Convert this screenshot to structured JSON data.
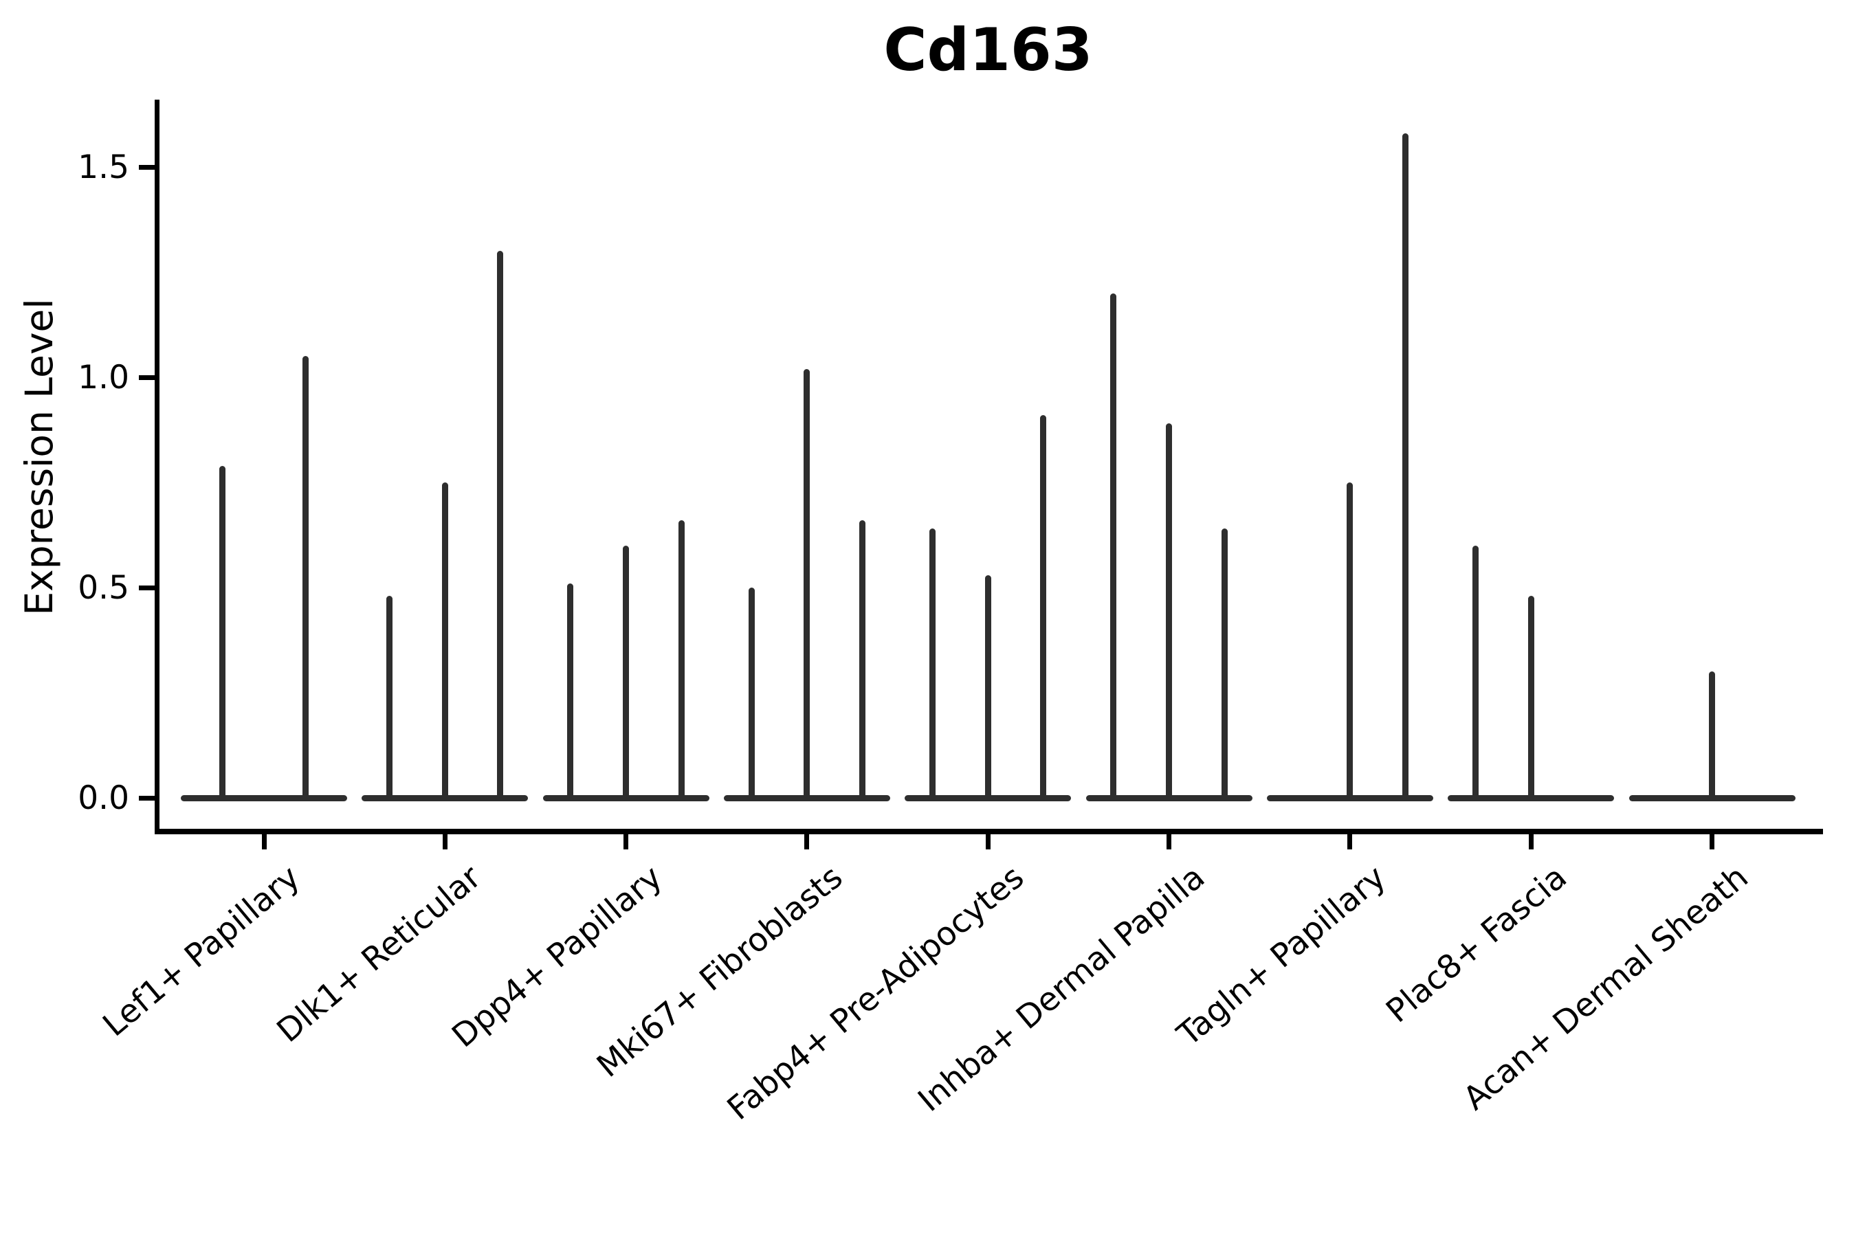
{
  "chart_data": {
    "type": "violin",
    "title": "Cd163",
    "ylabel": "Expression Level",
    "xlabel": "",
    "yticks": [
      0.0,
      0.5,
      1.0,
      1.5
    ],
    "ylim": [
      -0.08,
      1.66
    ],
    "grid": false,
    "legend": "none",
    "categories": [
      "Lef1+ Papillary",
      "Dlk1+ Reticular",
      "Dpp4+ Papillary",
      "Mki67+ Fibroblasts",
      "Fabp4+ Pre-Adipocytes",
      "Inhba+ Dermal Papilla",
      "Tagln+ Papillary",
      "Plac8+ Fascia",
      "Acan+ Dermal Sheath"
    ],
    "groups": [
      {
        "label": "Lef1+ Papillary",
        "violin_max": [
          0.79,
          1.05
        ]
      },
      {
        "label": "Dlk1+ Reticular",
        "violin_max": [
          0.48,
          0.75,
          1.3
        ]
      },
      {
        "label": "Dpp4+ Papillary",
        "violin_max": [
          0.51,
          0.6,
          0.66
        ]
      },
      {
        "label": "Mki67+ Fibroblasts",
        "violin_max": [
          0.5,
          1.02,
          0.66
        ]
      },
      {
        "label": "Fabp4+ Pre-Adipocytes",
        "violin_max": [
          0.64,
          0.53,
          0.91
        ]
      },
      {
        "label": "Inhba+ Dermal Papilla",
        "violin_max": [
          1.2,
          0.89,
          0.64
        ]
      },
      {
        "label": "Tagln+ Papillary",
        "violin_max": [
          null,
          0.75,
          1.58
        ]
      },
      {
        "label": "Plac8+ Fascia",
        "violin_max": [
          0.6,
          0.48,
          null
        ]
      },
      {
        "label": "Acan+ Dermal Sheath",
        "violin_max": [
          0.3
        ]
      }
    ],
    "colors": {
      "violin": "#2e2e2e",
      "axis": "#000000",
      "text": "#000000",
      "background": "#ffffff"
    }
  }
}
